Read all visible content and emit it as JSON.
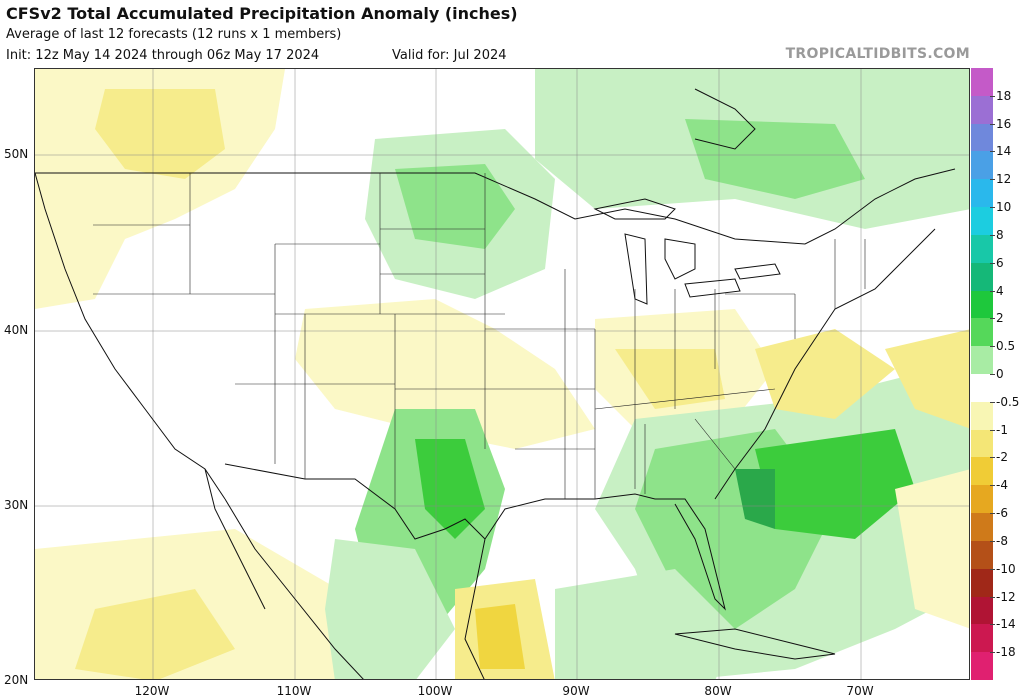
{
  "header": {
    "title": "CFSv2 Total Accumulated Precipitation Anomaly (inches)",
    "subtitle": "Average of last 12 forecasts (12 runs x 1 members)",
    "init": "Init: 12z May 14 2024 through 06z May 17 2024",
    "valid": "Valid for: Jul 2024",
    "brand": "TROPICALTIDBITS.COM"
  },
  "axes": {
    "lat_labels": [
      "50N",
      "40N",
      "30N",
      "20N"
    ],
    "lon_labels": [
      "120W",
      "110W",
      "100W",
      "90W",
      "80W",
      "70W"
    ]
  },
  "colorbar": {
    "labels": [
      "18",
      "16",
      "14",
      "12",
      "10",
      "8",
      "6",
      "4",
      "2",
      "0.5",
      "0",
      "-0.5",
      "-1",
      "-2",
      "-4",
      "-6",
      "-8",
      "-10",
      "-12",
      "-14",
      "-18"
    ],
    "colors": [
      "#c45ac8",
      "#9b6fd4",
      "#6f88dc",
      "#4aa0e6",
      "#2ab8ec",
      "#1ccde0",
      "#18c8a8",
      "#15b878",
      "#1ec83c",
      "#55d85a",
      "#a8eca4",
      "#ffffff",
      "#f8f6b4",
      "#f4e676",
      "#f0cc36",
      "#e6a820",
      "#cf7a1a",
      "#b45018",
      "#a02818",
      "#b01434",
      "#cc1850",
      "#e02070"
    ]
  },
  "colors": {
    "wet_light": "#c8f0c4",
    "wet_mid": "#8ee38a",
    "wet_strong": "#3ccc3c",
    "wet_max": "#2aa84a",
    "dry_light": "#fbf8c6",
    "dry_mid": "#f6ec8c",
    "dry_strong": "#f0d640"
  }
}
